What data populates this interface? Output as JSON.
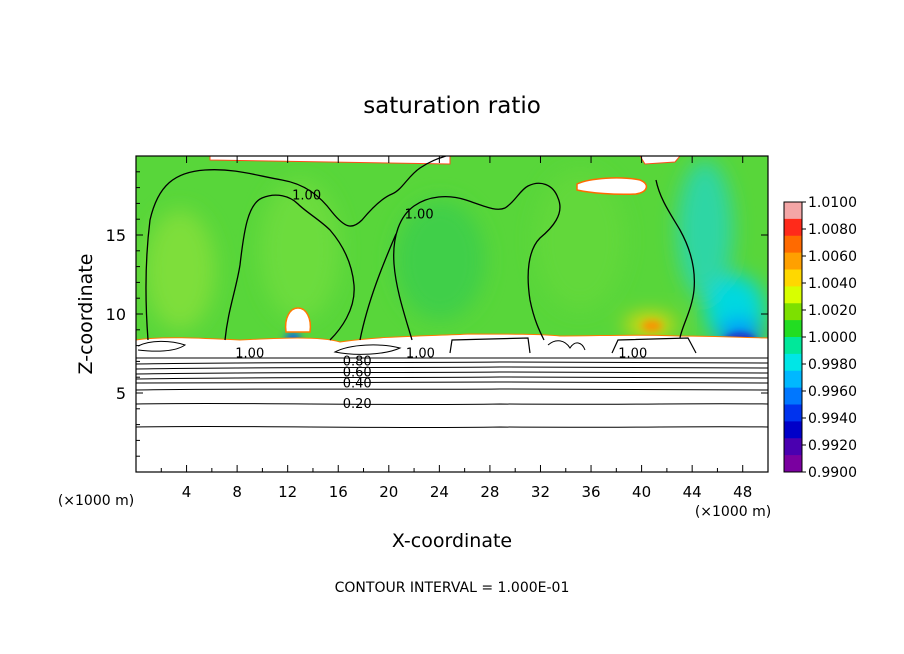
{
  "chart_data": {
    "type": "heatmap",
    "title": "saturation ratio",
    "xlabel": "X-coordinate",
    "ylabel": "Z-coordinate",
    "x_unit_label": "(×1000 m)",
    "y_unit_label": "(×1000 m)",
    "xlim": [
      0,
      50
    ],
    "ylim": [
      0,
      20
    ],
    "x_ticks": [
      4,
      8,
      12,
      16,
      20,
      24,
      28,
      32,
      36,
      40,
      44,
      48
    ],
    "y_ticks": [
      5,
      10,
      15
    ],
    "footer": "CONTOUR INTERVAL = 1.000E-01",
    "colorbar": {
      "levels": [
        "1.0100",
        "1.0080",
        "1.0060",
        "1.0040",
        "1.0020",
        "1.0000",
        "0.9980",
        "0.9960",
        "0.9940",
        "0.9920",
        "0.9900"
      ],
      "colors": [
        "#f4a6a6",
        "#ff2a1a",
        "#ff6a00",
        "#ffa000",
        "#ffd800",
        "#d8ff00",
        "#7de000",
        "#22dd22",
        "#00e89a",
        "#00e6e6",
        "#00b8ff",
        "#0077ff",
        "#0033ee",
        "#0000c8",
        "#4a00b0",
        "#7a00a0"
      ]
    },
    "contour_labels": [
      {
        "text": "1.00",
        "x": 13.5,
        "z": 17.5
      },
      {
        "text": "1.00",
        "x": 22.4,
        "z": 16.3
      },
      {
        "text": "1.00",
        "x": 9.0,
        "z": 7.5
      },
      {
        "text": "1.00",
        "x": 22.5,
        "z": 7.5
      },
      {
        "text": "1.00",
        "x": 39.3,
        "z": 7.5
      },
      {
        "text": "0.80",
        "x": 17.5,
        "z": 7.0
      },
      {
        "text": "0.60",
        "x": 17.5,
        "z": 6.3
      },
      {
        "text": "0.40",
        "x": 17.5,
        "z": 5.6
      },
      {
        "text": "0.20",
        "x": 17.5,
        "z": 4.3
      }
    ]
  }
}
